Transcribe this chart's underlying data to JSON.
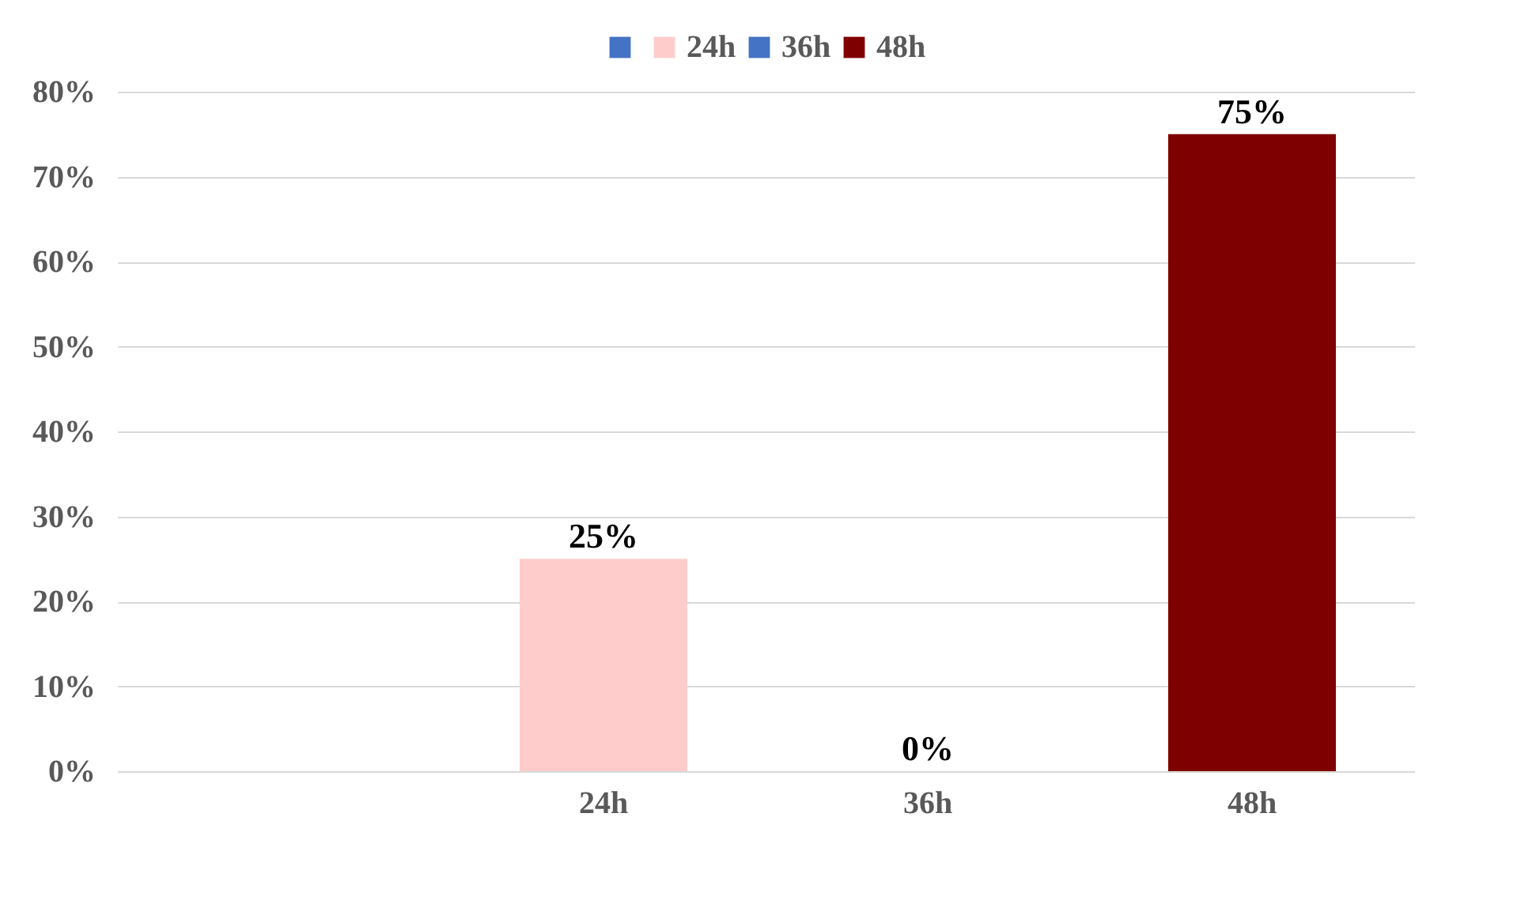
{
  "chart_data": {
    "type": "bar",
    "categories": [
      null,
      "24h",
      "36h",
      "48h"
    ],
    "series": [
      {
        "color": "#4472c4",
        "values": [
          null,
          null,
          null,
          null
        ]
      },
      {
        "name": "24h",
        "color": "#ffcccc",
        "values": [
          null,
          25,
          null,
          null
        ],
        "value_labels": [
          null,
          "25%",
          null,
          null
        ]
      },
      {
        "name": "36h",
        "color": "#4472c4",
        "values": [
          null,
          null,
          0,
          null
        ],
        "value_labels": [
          null,
          null,
          "0%",
          null
        ]
      },
      {
        "name": "48h",
        "color": "#7f0000",
        "values": [
          null,
          null,
          null,
          75
        ],
        "value_labels": [
          null,
          null,
          null,
          "75%"
        ]
      }
    ],
    "ylim": [
      0,
      80
    ],
    "yticks": [
      {
        "value": 0,
        "label": "0%"
      },
      {
        "value": 10,
        "label": "10%"
      },
      {
        "value": 20,
        "label": "20%"
      },
      {
        "value": 30,
        "label": "30%"
      },
      {
        "value": 40,
        "label": "40%"
      },
      {
        "value": 50,
        "label": "50%"
      },
      {
        "value": 60,
        "label": "60%"
      },
      {
        "value": 70,
        "label": "70%"
      },
      {
        "value": 80,
        "label": "80%"
      }
    ],
    "grid": "y",
    "legend": "top"
  }
}
